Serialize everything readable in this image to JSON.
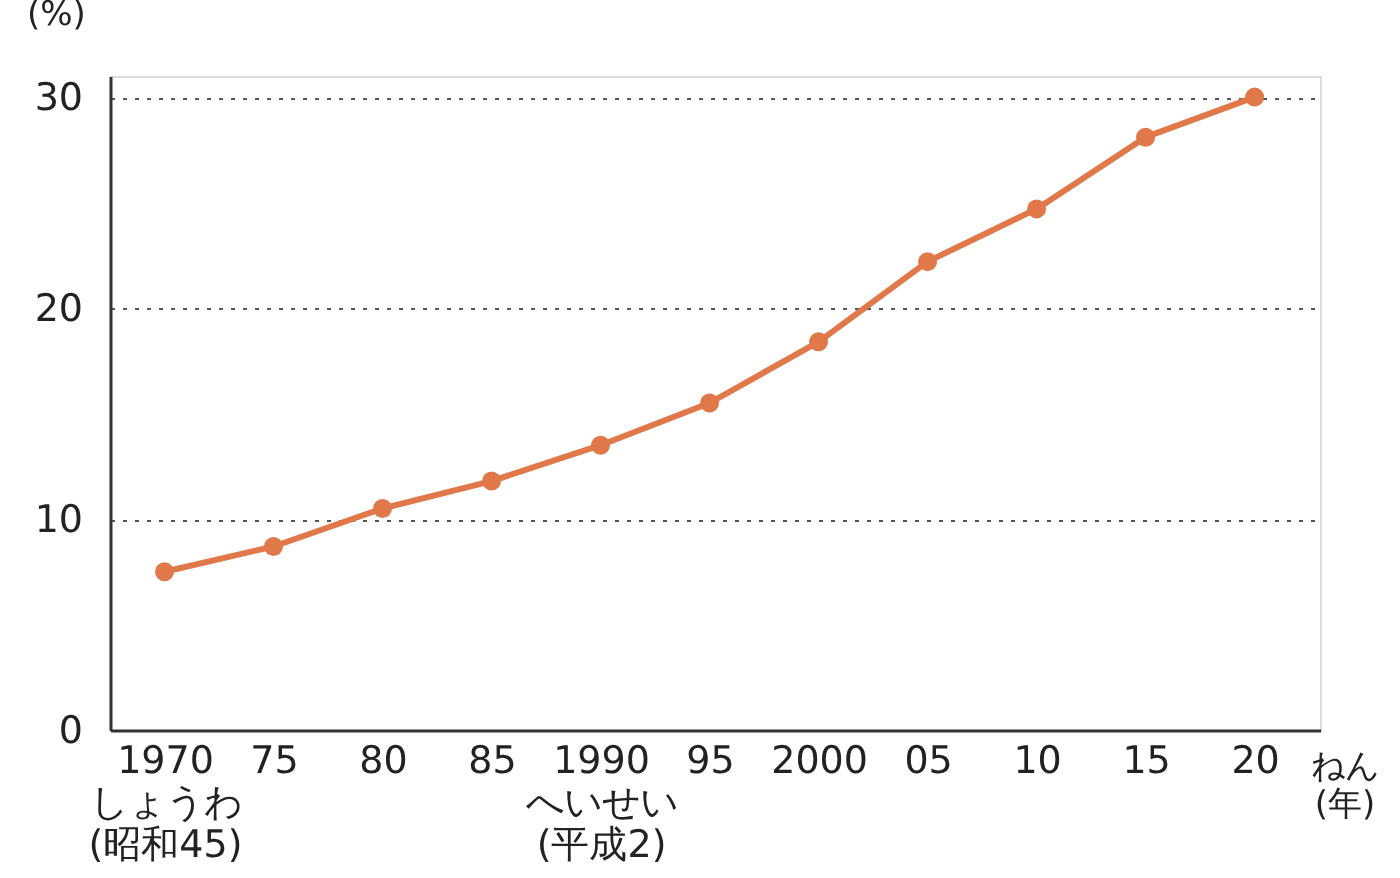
{
  "chart_data": {
    "type": "line",
    "ylabel": "(%)",
    "xlabel": "ねん\n(年)",
    "x": [
      1970,
      1975,
      1980,
      1985,
      1990,
      1995,
      2000,
      2005,
      2010,
      2015,
      2020
    ],
    "series": [
      {
        "color": "#e0784a",
        "values": [
          7.5,
          8.7,
          10.5,
          11.8,
          13.5,
          15.5,
          18.4,
          22.2,
          24.7,
          28.1,
          30.0
        ]
      }
    ],
    "xlim": [
      1967.5,
      2023
    ],
    "xticks": [
      {
        "value": 1970,
        "label": "1970\nしょうわ\n(昭和45)"
      },
      {
        "value": 1975,
        "label": "75"
      },
      {
        "value": 1980,
        "label": "80"
      },
      {
        "value": 1985,
        "label": "85"
      },
      {
        "value": 1990,
        "label": "1990\nへいせい\n(平成2)"
      },
      {
        "value": 1995,
        "label": "95"
      },
      {
        "value": 2000,
        "label": "2000"
      },
      {
        "value": 2005,
        "label": "05"
      },
      {
        "value": 2010,
        "label": "10"
      },
      {
        "value": 2015,
        "label": "15"
      },
      {
        "value": 2020,
        "label": "20"
      }
    ],
    "ylim": [
      0,
      31
    ],
    "yticks": [
      0,
      10,
      20,
      30
    ],
    "grid": "y",
    "marker": "circle",
    "line_style": "solid"
  }
}
